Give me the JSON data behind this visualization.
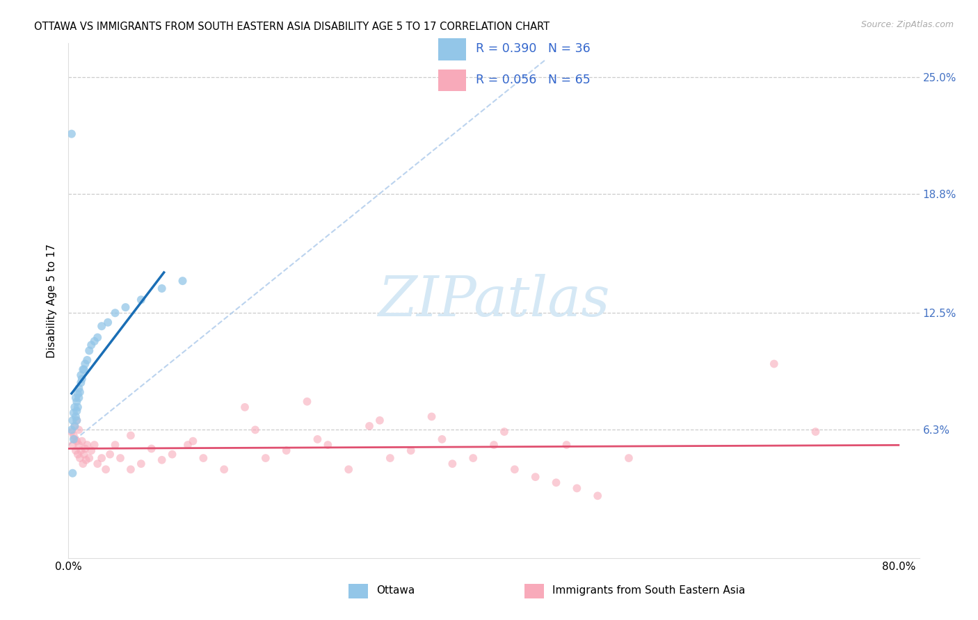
{
  "title": "OTTAWA VS IMMIGRANTS FROM SOUTH EASTERN ASIA DISABILITY AGE 5 TO 17 CORRELATION CHART",
  "source": "Source: ZipAtlas.com",
  "ylabel": "Disability Age 5 to 17",
  "xlim": [
    0.0,
    0.82
  ],
  "ylim": [
    -0.005,
    0.268
  ],
  "ytick_vals": [
    0.063,
    0.125,
    0.188,
    0.25
  ],
  "ytick_labels": [
    "6.3%",
    "12.5%",
    "18.8%",
    "25.0%"
  ],
  "xtick_vals": [
    0.0,
    0.2,
    0.4,
    0.6,
    0.8
  ],
  "xtick_labels": [
    "0.0%",
    "",
    "",
    "",
    "80.0%"
  ],
  "R_ottawa": 0.39,
  "N_ottawa": 36,
  "R_immigrants": 0.056,
  "N_immigrants": 65,
  "color_ottawa": "#93c6e8",
  "color_immigrants": "#f8aaba",
  "color_ottawa_line": "#1a6eb5",
  "color_immigrants_line": "#e05070",
  "color_dashed": "#b0ccec",
  "watermark_color": "#d5e8f5",
  "ottawa_x": [
    0.003,
    0.004,
    0.005,
    0.005,
    0.006,
    0.006,
    0.007,
    0.007,
    0.008,
    0.008,
    0.008,
    0.009,
    0.009,
    0.01,
    0.01,
    0.011,
    0.012,
    0.012,
    0.013,
    0.014,
    0.015,
    0.016,
    0.018,
    0.02,
    0.022,
    0.025,
    0.028,
    0.032,
    0.038,
    0.045,
    0.055,
    0.07,
    0.09,
    0.11,
    0.004,
    0.003
  ],
  "ottawa_y": [
    0.063,
    0.068,
    0.058,
    0.072,
    0.065,
    0.075,
    0.07,
    0.08,
    0.068,
    0.073,
    0.078,
    0.075,
    0.082,
    0.08,
    0.085,
    0.083,
    0.088,
    0.092,
    0.09,
    0.095,
    0.095,
    0.098,
    0.1,
    0.105,
    0.108,
    0.11,
    0.112,
    0.118,
    0.12,
    0.125,
    0.128,
    0.132,
    0.138,
    0.142,
    0.04,
    0.22
  ],
  "immigrants_x": [
    0.003,
    0.004,
    0.005,
    0.006,
    0.006,
    0.007,
    0.008,
    0.008,
    0.009,
    0.01,
    0.01,
    0.011,
    0.012,
    0.013,
    0.014,
    0.015,
    0.016,
    0.017,
    0.018,
    0.02,
    0.022,
    0.025,
    0.028,
    0.032,
    0.036,
    0.04,
    0.045,
    0.05,
    0.06,
    0.07,
    0.08,
    0.09,
    0.1,
    0.115,
    0.13,
    0.15,
    0.17,
    0.19,
    0.21,
    0.23,
    0.25,
    0.27,
    0.29,
    0.31,
    0.33,
    0.35,
    0.37,
    0.39,
    0.41,
    0.43,
    0.45,
    0.47,
    0.49,
    0.51,
    0.06,
    0.12,
    0.18,
    0.24,
    0.3,
    0.36,
    0.42,
    0.48,
    0.54,
    0.68,
    0.72
  ],
  "immigrants_y": [
    0.062,
    0.055,
    0.06,
    0.058,
    0.065,
    0.052,
    0.068,
    0.057,
    0.05,
    0.055,
    0.063,
    0.048,
    0.052,
    0.057,
    0.045,
    0.05,
    0.053,
    0.047,
    0.055,
    0.048,
    0.052,
    0.055,
    0.045,
    0.048,
    0.042,
    0.05,
    0.055,
    0.048,
    0.042,
    0.045,
    0.053,
    0.047,
    0.05,
    0.055,
    0.048,
    0.042,
    0.075,
    0.048,
    0.052,
    0.078,
    0.055,
    0.042,
    0.065,
    0.048,
    0.052,
    0.07,
    0.045,
    0.048,
    0.055,
    0.042,
    0.038,
    0.035,
    0.032,
    0.028,
    0.06,
    0.057,
    0.063,
    0.058,
    0.068,
    0.058,
    0.062,
    0.055,
    0.048,
    0.098,
    0.062
  ]
}
